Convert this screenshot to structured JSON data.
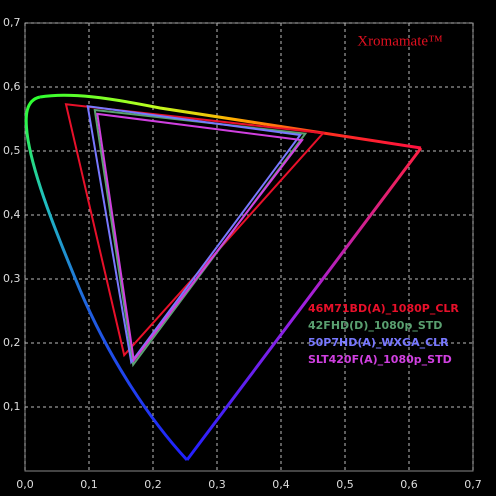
{
  "chart_data": {
    "type": "gamut",
    "title": "Xromamate™",
    "xlim": [
      0,
      0.7
    ],
    "ylim": [
      0,
      0.7
    ],
    "xticks": [
      {
        "value": 0,
        "label": "0,0"
      },
      {
        "value": 0.1,
        "label": "0,1"
      },
      {
        "value": 0.2,
        "label": "0,2"
      },
      {
        "value": 0.3,
        "label": "0,3"
      },
      {
        "value": 0.4,
        "label": "0,4"
      },
      {
        "value": 0.5,
        "label": "0,5"
      },
      {
        "value": 0.6,
        "label": "0,6"
      },
      {
        "value": 0.7,
        "label": "0,7"
      }
    ],
    "yticks": [
      {
        "value": 0.1,
        "label": "0,1"
      },
      {
        "value": 0.2,
        "label": "0,2"
      },
      {
        "value": 0.3,
        "label": "0,3"
      },
      {
        "value": 0.4,
        "label": "0,4"
      },
      {
        "value": 0.5,
        "label": "0,5"
      },
      {
        "value": 0.6,
        "label": "0,6"
      },
      {
        "value": 0.7,
        "label": "0,7"
      }
    ],
    "grid": true,
    "series": [
      {
        "name": "46M71BD(A)_1080P_CLR",
        "color": "#e8102a",
        "x": [
          0.064,
          0.466,
          0.155
        ],
        "values": [
          0.573,
          0.528,
          0.181
        ]
      },
      {
        "name": "42FHD(D)_1080p_STD",
        "color": "#5aa070",
        "x": [
          0.109,
          0.438,
          0.169
        ],
        "values": [
          0.564,
          0.527,
          0.166
        ]
      },
      {
        "name": "50P7HD(A)_WXGA_CLR",
        "color": "#7878ff",
        "x": [
          0.098,
          0.43,
          0.166
        ],
        "values": [
          0.57,
          0.525,
          0.17
        ]
      },
      {
        "name": "SLT420F(A)_1080p_STD",
        "color": "#d040e0",
        "x": [
          0.113,
          0.433,
          0.17
        ],
        "values": [
          0.558,
          0.517,
          0.173
        ]
      }
    ]
  }
}
